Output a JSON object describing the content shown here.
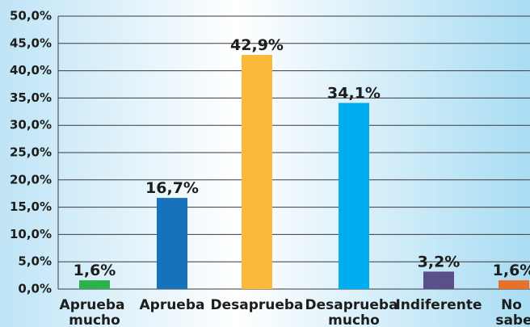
{
  "chart_data": {
    "type": "bar",
    "categories": [
      "Aprueba mucho",
      "Aprueba",
      "Desaprueba",
      "Desaprueba mucho",
      "Indiferente",
      "No sabe"
    ],
    "values": [
      1.6,
      16.7,
      42.9,
      34.1,
      3.2,
      1.6
    ],
    "value_labels": [
      "1,6%",
      "16,7%",
      "42,9%",
      "34,1%",
      "3,2%",
      "1,6%"
    ],
    "colors": [
      "#2bb24c",
      "#1572bb",
      "#fbb93b",
      "#00aeef",
      "#5a4f8b",
      "#e8702a"
    ],
    "ylim": [
      0,
      50
    ],
    "yticks": [
      {
        "value": 0,
        "label": "0,0%"
      },
      {
        "value": 5,
        "label": "5,0%"
      },
      {
        "value": 10,
        "label": "10,0%"
      },
      {
        "value": 15,
        "label": "15,0%"
      },
      {
        "value": 20,
        "label": "20,0%"
      },
      {
        "value": 25,
        "label": "25,0%"
      },
      {
        "value": 30,
        "label": "30,0%"
      },
      {
        "value": 35,
        "label": "35,0%"
      },
      {
        "value": 40,
        "label": "40,0%"
      },
      {
        "value": 45,
        "label": "45,0%"
      },
      {
        "value": 50,
        "label": "50,0%"
      }
    ],
    "grid": true
  }
}
